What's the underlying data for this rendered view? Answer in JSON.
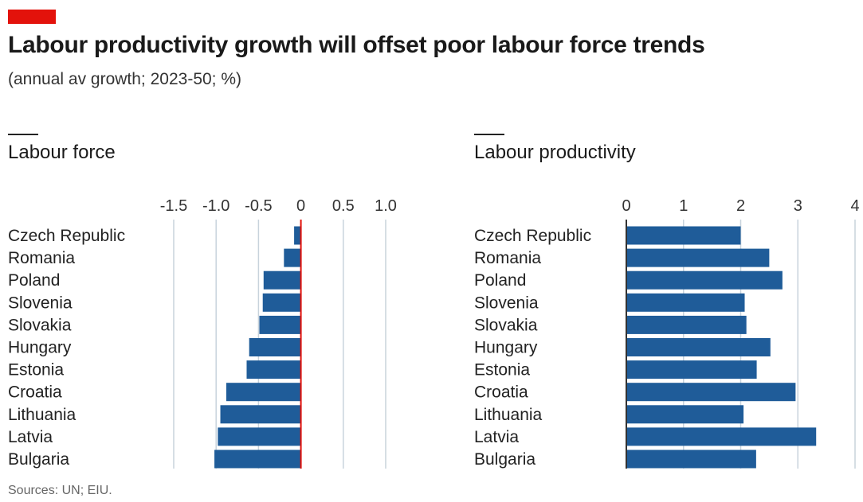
{
  "header": {
    "title": "Labour productivity growth will offset poor labour force trends",
    "subtitle": "(annual av growth; 2023-50; %)"
  },
  "colors": {
    "accent": "#e3120b",
    "bar": "#1f5c99",
    "grid": "#c8d3dc",
    "zero_line": "#e3120b",
    "axis_line": "#333333"
  },
  "chart_data": [
    {
      "type": "bar",
      "orientation": "horizontal",
      "title": "Labour force",
      "categories": [
        "Czech Republic",
        "Romania",
        "Poland",
        "Slovenia",
        "Slovakia",
        "Hungary",
        "Estonia",
        "Croatia",
        "Lithuania",
        "Latvia",
        "Bulgaria"
      ],
      "values": [
        -0.08,
        -0.2,
        -0.44,
        -0.45,
        -0.49,
        -0.61,
        -0.64,
        -0.88,
        -0.95,
        -0.98,
        -1.02
      ],
      "xlim": [
        -1.5,
        1.0
      ],
      "ticks": [
        -1.5,
        -1.0,
        -0.5,
        0,
        0.5,
        1.0
      ],
      "tick_labels": [
        "-1.5",
        "-1.0",
        "-0.5",
        "0",
        "0.5",
        "1.0"
      ],
      "grid": true
    },
    {
      "type": "bar",
      "orientation": "horizontal",
      "title": "Labour productivity",
      "categories": [
        "Czech Republic",
        "Romania",
        "Poland",
        "Slovenia",
        "Slovakia",
        "Hungary",
        "Estonia",
        "Croatia",
        "Lithuania",
        "Latvia",
        "Bulgaria"
      ],
      "values": [
        2.0,
        2.5,
        2.73,
        2.07,
        2.1,
        2.52,
        2.28,
        2.96,
        2.05,
        3.32,
        2.27
      ],
      "xlim": [
        0,
        4
      ],
      "ticks": [
        0,
        1,
        2,
        3,
        4
      ],
      "tick_labels": [
        "0",
        "1",
        "2",
        "3",
        "4"
      ],
      "grid": true
    }
  ],
  "footer": {
    "source": "Sources: UN; EIU."
  }
}
